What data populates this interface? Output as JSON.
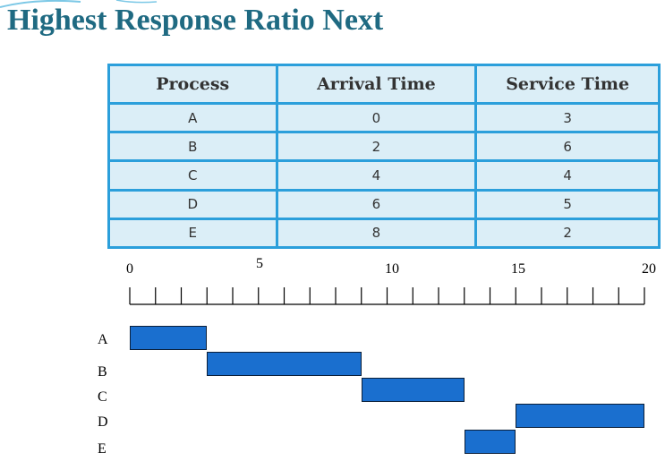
{
  "title": "Highest Response Ratio Next",
  "table": {
    "headers": [
      "Process",
      "Arrival Time",
      "Service Time"
    ],
    "rows": [
      {
        "process": "A",
        "arrival": "0",
        "service": "3"
      },
      {
        "process": "B",
        "arrival": "2",
        "service": "6"
      },
      {
        "process": "C",
        "arrival": "4",
        "service": "4"
      },
      {
        "process": "D",
        "arrival": "6",
        "service": "5"
      },
      {
        "process": "E",
        "arrival": "8",
        "service": "2"
      }
    ]
  },
  "timeline": {
    "tick_labels": [
      "0",
      "5",
      "10",
      "15",
      "20"
    ],
    "axis_min": 0,
    "axis_max": 20,
    "processes": [
      {
        "name": "A",
        "start": 0,
        "end": 3
      },
      {
        "name": "B",
        "start": 3,
        "end": 9
      },
      {
        "name": "C",
        "start": 9,
        "end": 13
      },
      {
        "name": "D",
        "start": 15,
        "end": 20
      },
      {
        "name": "E",
        "start": 13,
        "end": 15
      }
    ]
  },
  "colors": {
    "title": "#1f6a82",
    "table_border": "#2b9fdb",
    "table_cell": "#dbeef7",
    "bar_fill": "#1a6fcf",
    "bar_border": "#0a1f3a"
  }
}
